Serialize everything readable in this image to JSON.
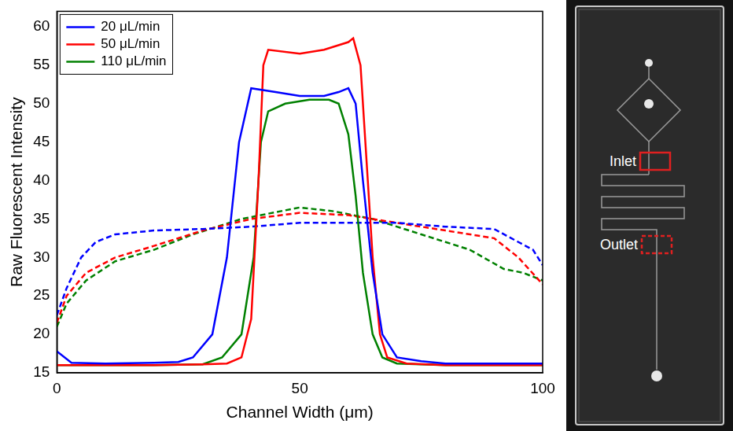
{
  "chart_data": {
    "type": "line",
    "x_label": "Channel Width (μm)",
    "y_label": "Raw Fluorescent Intensity",
    "xlim": [
      0,
      100
    ],
    "xticks": [
      0,
      50,
      100
    ],
    "ylim": [
      15,
      62
    ],
    "yticks": [
      15,
      20,
      25,
      30,
      35,
      40,
      45,
      50,
      55,
      60
    ],
    "grid": false,
    "legend": "upper left",
    "series": [
      {
        "name": "20 μL/min",
        "color": "#0000FF",
        "line_style": "solid",
        "x": [
          0,
          3,
          10,
          20,
          25,
          28,
          32,
          35,
          37.5,
          40,
          45,
          50,
          55,
          58,
          60,
          61.5,
          63,
          65,
          67,
          70,
          75,
          80,
          90,
          100
        ],
        "values": [
          17.8,
          16.3,
          16.2,
          16.3,
          16.4,
          17,
          20,
          30,
          45,
          52,
          51.5,
          51,
          51,
          51.5,
          52,
          50,
          40,
          28,
          20,
          17,
          16.5,
          16.2,
          16.2,
          16.2
        ]
      },
      {
        "name": "50 μL/min",
        "color": "#FF0000",
        "line_style": "solid",
        "x": [
          0,
          10,
          20,
          30,
          35,
          38,
          40,
          41.5,
          42.5,
          43.5,
          50,
          55,
          60,
          61,
          62.5,
          63.5,
          65,
          66.5,
          68,
          72,
          80,
          90,
          100
        ],
        "values": [
          16,
          16,
          16,
          16.1,
          16.2,
          17,
          22,
          40,
          55,
          57,
          56.5,
          57,
          58,
          58.5,
          55,
          45,
          30,
          20,
          17,
          16.2,
          16,
          16,
          16
        ]
      },
      {
        "name": "110 μL/min",
        "color": "#008000",
        "line_style": "solid",
        "x": [
          0,
          10,
          20,
          30,
          34,
          38,
          40.5,
          42,
          43.5,
          47,
          52,
          56,
          58,
          60,
          61.5,
          63,
          65,
          67,
          70,
          80,
          90,
          100
        ],
        "values": [
          16,
          16,
          16,
          16.1,
          17,
          20,
          30,
          45,
          49,
          50,
          50.5,
          50.5,
          50,
          46,
          38,
          28,
          20,
          17,
          16.2,
          16,
          16,
          16
        ]
      },
      {
        "color": "#0000FF",
        "line_style": "dashed",
        "x": [
          0,
          2,
          5,
          8,
          12,
          20,
          30,
          40,
          50,
          60,
          70,
          80,
          90,
          95,
          98,
          100
        ],
        "values": [
          22.5,
          26,
          30,
          32,
          33,
          33.5,
          33.7,
          34,
          34.5,
          34.5,
          34.5,
          34,
          33.7,
          32,
          31,
          29
        ]
      },
      {
        "color": "#FF0000",
        "line_style": "dashed",
        "x": [
          0,
          2,
          6,
          12,
          20,
          30,
          40,
          50,
          60,
          70,
          80,
          90,
          95,
          100
        ],
        "values": [
          21.5,
          25,
          28,
          30,
          31.5,
          33.5,
          35,
          35.8,
          35.5,
          34.5,
          33.5,
          32.5,
          30,
          26.5
        ]
      },
      {
        "color": "#008000",
        "line_style": "dashed",
        "x": [
          0,
          2,
          6,
          12,
          20,
          28,
          38,
          50,
          57,
          65,
          75,
          85,
          92,
          96,
          100
        ],
        "values": [
          21,
          24,
          27,
          29.5,
          31,
          33,
          35,
          36.5,
          36,
          35,
          33,
          31,
          28.5,
          28,
          27
        ]
      }
    ]
  },
  "photo": {
    "labels": {
      "inlet": "Inlet",
      "outlet": "Outlet"
    }
  }
}
